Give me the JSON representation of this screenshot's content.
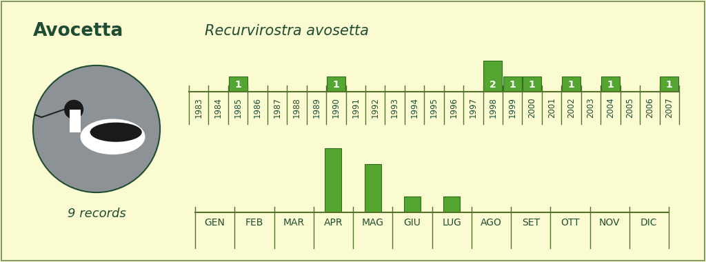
{
  "title": "Avocetta",
  "subtitle": "Recurvirostra avosetta",
  "annotation": "9 records",
  "chart_data": [
    {
      "type": "bar",
      "categories": [
        "1983",
        "1984",
        "1985",
        "1986",
        "1987",
        "1988",
        "1989",
        "1990",
        "1991",
        "1992",
        "1993",
        "1994",
        "1995",
        "1996",
        "1997",
        "1998",
        "1999",
        "2000",
        "2001",
        "2002",
        "2003",
        "2004",
        "2005",
        "2006",
        "2007"
      ],
      "values": [
        null,
        null,
        1,
        null,
        null,
        null,
        null,
        1,
        null,
        null,
        null,
        null,
        null,
        null,
        null,
        2,
        1,
        1,
        null,
        1,
        null,
        1,
        null,
        null,
        1
      ],
      "color": "#55a630",
      "ylim": [
        0,
        2
      ],
      "data_labels": true,
      "tick_labels": "x"
    },
    {
      "type": "bar",
      "categories": [
        "GEN",
        "FEB",
        "MAR",
        "APR",
        "MAG",
        "GIU",
        "LUG",
        "AGO",
        "SET",
        "OTT",
        "NOV",
        "DIC"
      ],
      "values": [
        null,
        null,
        null,
        4,
        3,
        1,
        1,
        null,
        null,
        null,
        null,
        null
      ],
      "color": "#55a630",
      "ylim": [
        0,
        4
      ],
      "tick_labels": "x"
    }
  ]
}
